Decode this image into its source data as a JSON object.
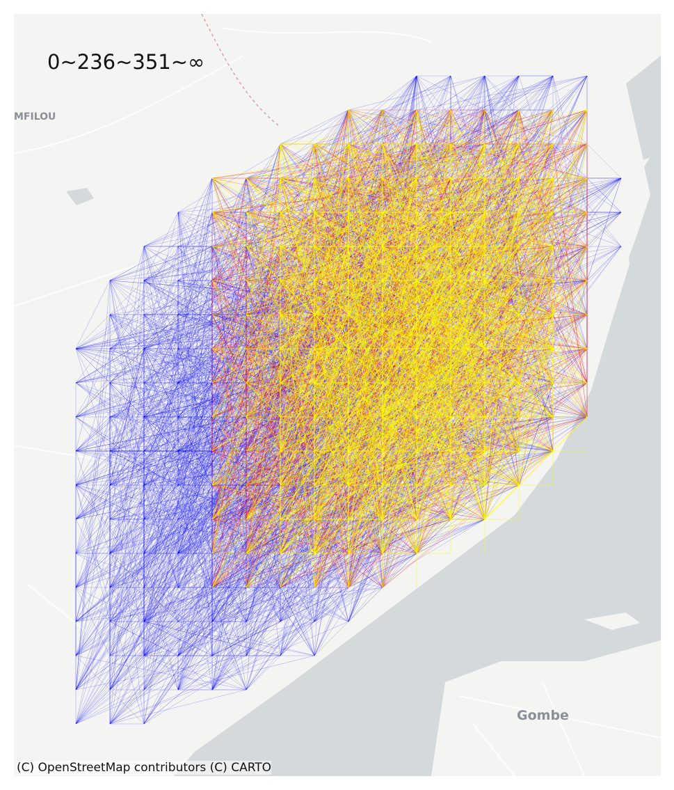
{
  "map": {
    "title": "0~236~351~∞",
    "attribution": "(C) OpenStreetMap contributors (C) CARTO",
    "places": [
      {
        "id": "mfilou",
        "label": "MFILOU"
      },
      {
        "id": "gombe",
        "label": "Gombe"
      }
    ],
    "legend_classes": [
      {
        "range": "0~236",
        "color": "#0000ff"
      },
      {
        "range": "236~351",
        "color": "#ff0000"
      },
      {
        "range": "351~∞",
        "color": "#ffff00"
      }
    ],
    "colors": {
      "background": "#f4f4f2",
      "water": "#d4dadc",
      "roads": "#ffffff",
      "low": "#0000ff",
      "mid": "#ff0000",
      "high": "#ffff00"
    },
    "icons": [
      "od-flow-network"
    ]
  }
}
